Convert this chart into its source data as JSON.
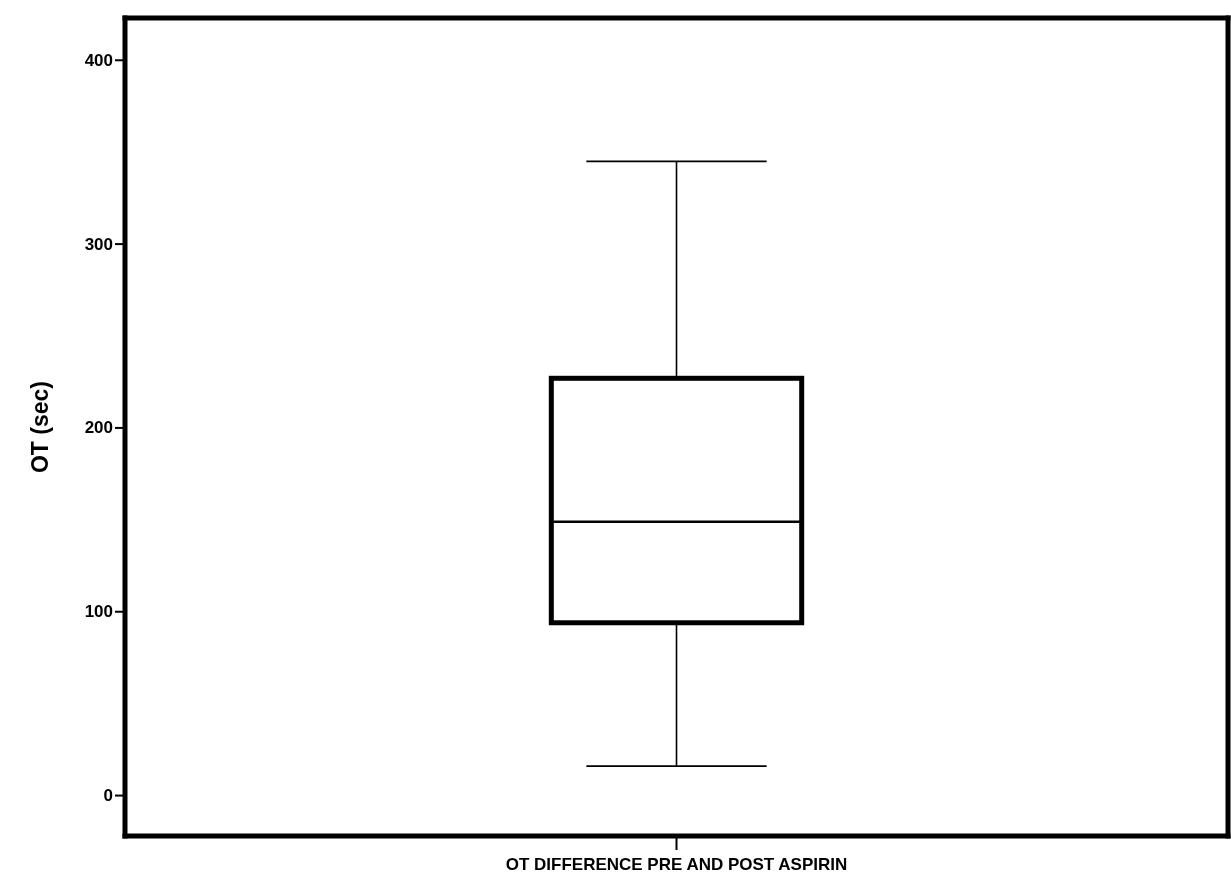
{
  "chart_data": {
    "type": "box",
    "ylabel": "OT (sec)",
    "categories": [
      "OT DIFFERENCE PRE AND POST ASPIRIN"
    ],
    "boxes": [
      {
        "low": 16,
        "q1": 94,
        "median": 149,
        "q3": 227,
        "high": 345
      }
    ],
    "ylim": [
      -22,
      423
    ],
    "yticks": [
      0,
      100,
      200,
      300,
      400
    ],
    "grid": false
  }
}
